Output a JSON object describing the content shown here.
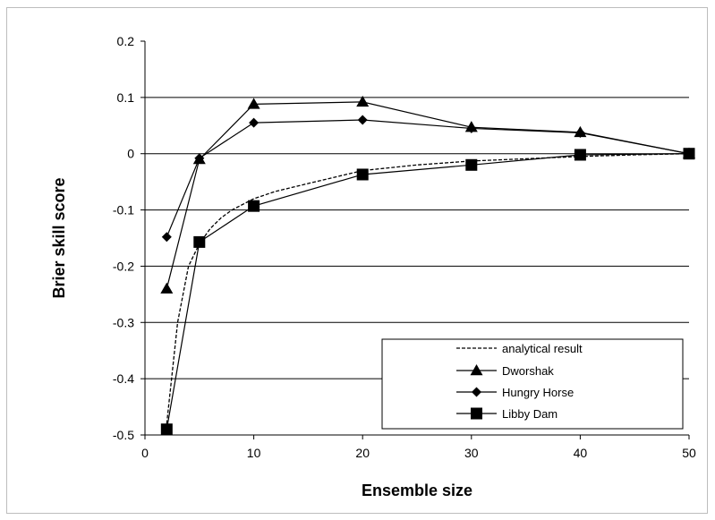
{
  "chart_data": {
    "type": "line",
    "title": "",
    "xlabel": "Ensemble size",
    "ylabel": "Brier skill score",
    "xlim": [
      0,
      50
    ],
    "ylim": [
      -0.5,
      0.2
    ],
    "x_ticks": [
      0,
      10,
      20,
      30,
      40,
      50
    ],
    "y_ticks": [
      0.2,
      0.1,
      0,
      -0.1,
      -0.2,
      -0.3,
      -0.4,
      -0.5
    ],
    "x_tick_labels": [
      "0",
      "10",
      "20",
      "30",
      "40",
      "50"
    ],
    "y_tick_labels": [
      "0.2",
      "0.1",
      "0",
      "-0.1",
      "-0.2",
      "-0.3",
      "-0.4",
      "-0.5"
    ],
    "grid": "horizontal",
    "legend_position": "bottom-right",
    "series": [
      {
        "name": "analytical result",
        "style": "dashed",
        "marker": "none",
        "x": [
          2,
          3,
          4,
          5,
          6,
          7,
          8,
          10,
          12,
          15,
          20,
          25,
          30,
          35,
          40,
          45,
          50
        ],
        "y": [
          -0.48,
          -0.3,
          -0.2,
          -0.16,
          -0.133,
          -0.114,
          -0.1,
          -0.08,
          -0.067,
          -0.053,
          -0.03,
          -0.02,
          -0.013,
          -0.009,
          -0.005,
          -0.002,
          0
        ]
      },
      {
        "name": "Dworshak",
        "style": "solid",
        "marker": "triangle",
        "x": [
          2,
          5,
          10,
          20,
          30,
          40,
          50
        ],
        "y": [
          -0.24,
          -0.01,
          0.088,
          0.092,
          0.047,
          0.038,
          0
        ]
      },
      {
        "name": "Hungry Horse",
        "style": "solid",
        "marker": "diamond",
        "x": [
          2,
          5,
          10,
          20,
          30,
          40,
          50
        ],
        "y": [
          -0.148,
          -0.008,
          0.055,
          0.06,
          0.045,
          0.037,
          0
        ]
      },
      {
        "name": "Libby Dam",
        "style": "solid",
        "marker": "square",
        "x": [
          2,
          5,
          10,
          20,
          30,
          40,
          50
        ],
        "y": [
          -0.49,
          -0.157,
          -0.093,
          -0.037,
          -0.02,
          -0.002,
          0
        ]
      }
    ]
  }
}
